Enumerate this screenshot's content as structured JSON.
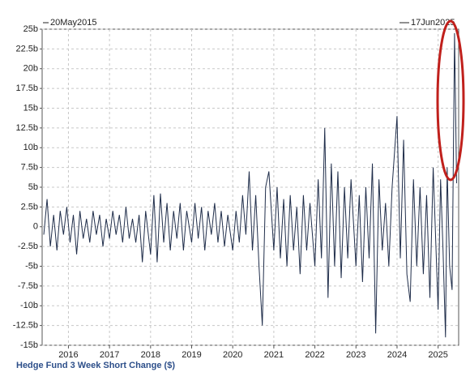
{
  "chart_data": {
    "type": "line",
    "start_label": "20May2015",
    "end_label": "17Jun2025",
    "x_label": "Hedge Fund 3 Week Short Change ($)",
    "x": [
      2015.4,
      2015.48,
      2015.56,
      2015.64,
      2015.72,
      2015.8,
      2015.88,
      2015.96,
      2016.04,
      2016.12,
      2016.2,
      2016.28,
      2016.36,
      2016.44,
      2016.52,
      2016.6,
      2016.68,
      2016.76,
      2016.84,
      2016.92,
      2017.0,
      2017.08,
      2017.16,
      2017.24,
      2017.32,
      2017.4,
      2017.48,
      2017.56,
      2017.64,
      2017.72,
      2017.8,
      2017.88,
      2018.0,
      2018.08,
      2018.16,
      2018.24,
      2018.32,
      2018.4,
      2018.48,
      2018.56,
      2018.64,
      2018.72,
      2018.8,
      2018.88,
      2019.0,
      2019.08,
      2019.16,
      2019.24,
      2019.32,
      2019.4,
      2019.48,
      2019.56,
      2019.64,
      2019.72,
      2019.8,
      2019.88,
      2020.0,
      2020.08,
      2020.16,
      2020.24,
      2020.32,
      2020.4,
      2020.48,
      2020.56,
      2020.64,
      2020.72,
      2020.8,
      2020.88,
      2021.0,
      2021.08,
      2021.16,
      2021.24,
      2021.32,
      2021.4,
      2021.48,
      2021.56,
      2021.64,
      2021.72,
      2021.8,
      2021.88,
      2022.0,
      2022.08,
      2022.16,
      2022.24,
      2022.32,
      2022.4,
      2022.48,
      2022.56,
      2022.64,
      2022.72,
      2022.8,
      2022.88,
      2023.0,
      2023.08,
      2023.16,
      2023.24,
      2023.32,
      2023.4,
      2023.48,
      2023.56,
      2023.64,
      2023.72,
      2023.8,
      2023.88,
      2024.0,
      2024.08,
      2024.16,
      2024.24,
      2024.32,
      2024.4,
      2024.48,
      2024.56,
      2024.64,
      2024.72,
      2024.8,
      2024.88,
      2025.0,
      2025.06,
      2025.12,
      2025.18,
      2025.22,
      2025.28,
      2025.34,
      2025.4,
      2025.45
    ],
    "series": [
      {
        "color": "#1f2d4a",
        "values": [
          -1,
          3.5,
          -2.5,
          1.5,
          -3,
          2,
          -1,
          2.5,
          -2,
          1.5,
          -3.5,
          2,
          -1.5,
          1,
          -2,
          2,
          -1,
          1.5,
          -2.5,
          1,
          -1.5,
          2,
          -1,
          1.5,
          -2,
          2.5,
          -1.5,
          1,
          -2,
          1.5,
          -4.5,
          2,
          -3.5,
          4,
          -4.5,
          4.2,
          -2,
          3,
          -3,
          2,
          -1.5,
          3,
          -3,
          2,
          -2,
          3,
          -1.5,
          2.5,
          -3,
          2,
          -1,
          3,
          -2,
          2,
          -2.5,
          1.5,
          -3,
          2,
          -2,
          4,
          -1,
          7,
          -3,
          4,
          -5,
          -12.5,
          5,
          7,
          -3,
          5,
          -4,
          3.5,
          -5,
          4,
          -3,
          2.5,
          -6,
          4,
          -3,
          3,
          -5,
          6,
          -4,
          12.5,
          -9,
          8,
          -5,
          7,
          -6.5,
          5,
          -4,
          6,
          -5,
          4,
          -7,
          5,
          -4,
          8,
          -13.5,
          6,
          -3,
          3,
          -5,
          5,
          14,
          -4,
          11,
          -6,
          -9.5,
          6,
          -5,
          5,
          -6,
          4,
          -9,
          7.5,
          -10.5,
          6,
          -3,
          -14,
          7.5,
          -5,
          -8,
          24.5,
          5.5
        ]
      }
    ],
    "xlim": [
      2015.36,
      2025.5
    ],
    "xticks": [
      2016,
      2017,
      2018,
      2019,
      2020,
      2021,
      2022,
      2023,
      2024,
      2025
    ],
    "ylim": [
      -15,
      25
    ],
    "yticks": [
      {
        "value": -15,
        "label": "-15b"
      },
      {
        "value": -12.5,
        "label": "-12.5b"
      },
      {
        "value": -10,
        "label": "-10b"
      },
      {
        "value": -7.5,
        "label": "-7.5b"
      },
      {
        "value": -5,
        "label": "-5b"
      },
      {
        "value": -2.5,
        "label": "-2.5b"
      },
      {
        "value": 0,
        "label": "0"
      },
      {
        "value": 2.5,
        "label": "2.5b"
      },
      {
        "value": 5,
        "label": "5b"
      },
      {
        "value": 7.5,
        "label": "7.5b"
      },
      {
        "value": 10,
        "label": "10b"
      },
      {
        "value": 12.5,
        "label": "12.5b"
      },
      {
        "value": 15,
        "label": "15b"
      },
      {
        "value": 17.5,
        "label": "17.5b"
      },
      {
        "value": 20,
        "label": "20b"
      },
      {
        "value": 22.5,
        "label": "22.5b"
      },
      {
        "value": 25,
        "label": "25b"
      }
    ],
    "grid": true
  }
}
